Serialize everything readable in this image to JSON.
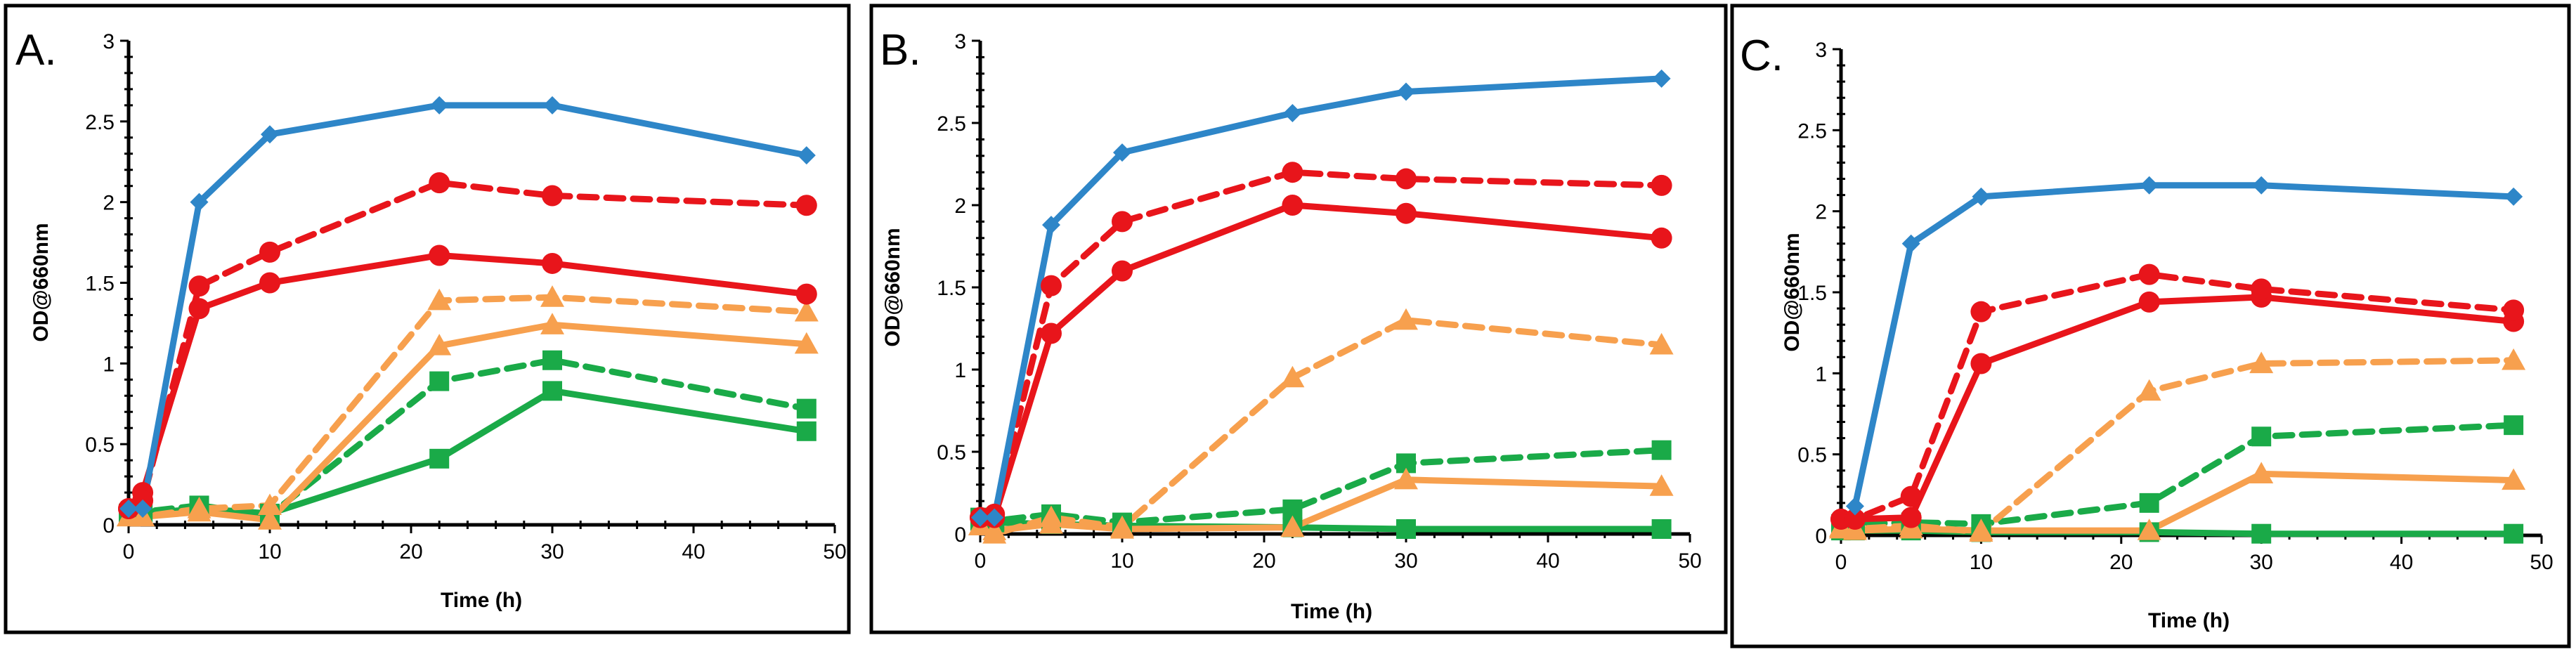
{
  "chart_data": [
    {
      "type": "line",
      "panel_label": "A.",
      "xlabel": "Time (h)",
      "ylabel": "OD@660nm",
      "xlim": [
        0,
        50
      ],
      "ylim": [
        0,
        3
      ],
      "x_ticks": [
        "0",
        "10",
        "20",
        "30",
        "40",
        "50"
      ],
      "y_ticks": [
        "0",
        "0.5",
        "1",
        "1.5",
        "2",
        "2.5",
        "3"
      ],
      "series": [
        {
          "name": "blue",
          "color": "#2e86c8",
          "style": "solid",
          "marker": "diamond",
          "x": [
            0,
            1,
            5,
            10,
            22,
            30,
            48
          ],
          "y": [
            0.1,
            0.1,
            2.0,
            2.42,
            2.6,
            2.6,
            2.29
          ]
        },
        {
          "name": "red-dashed",
          "color": "#e8151b",
          "style": "dashed",
          "marker": "circle",
          "x": [
            0,
            1,
            5,
            10,
            22,
            30,
            48
          ],
          "y": [
            0.1,
            0.15,
            1.48,
            1.69,
            2.12,
            2.04,
            1.98
          ]
        },
        {
          "name": "red-solid",
          "color": "#e8151b",
          "style": "solid",
          "marker": "circle",
          "x": [
            0,
            1,
            5,
            10,
            22,
            30,
            48
          ],
          "y": [
            0.1,
            0.2,
            1.34,
            1.5,
            1.67,
            1.62,
            1.43
          ]
        },
        {
          "name": "orange-dashed",
          "color": "#f7a04e",
          "style": "dashed",
          "marker": "triangle",
          "x": [
            0,
            1,
            5,
            10,
            22,
            30,
            48
          ],
          "y": [
            0.05,
            0.05,
            0.1,
            0.12,
            1.39,
            1.41,
            1.32
          ]
        },
        {
          "name": "orange-solid",
          "color": "#f7a04e",
          "style": "solid",
          "marker": "triangle",
          "x": [
            0,
            1,
            5,
            10,
            22,
            30,
            48
          ],
          "y": [
            0.05,
            0.05,
            0.08,
            0.03,
            1.11,
            1.24,
            1.12
          ]
        },
        {
          "name": "green-dashed",
          "color": "#1aaa48",
          "style": "dashed",
          "marker": "square",
          "x": [
            0,
            1,
            5,
            10,
            22,
            30,
            48
          ],
          "y": [
            0.07,
            0.08,
            0.12,
            0.06,
            0.89,
            1.02,
            0.72
          ]
        },
        {
          "name": "green-solid",
          "color": "#1aaa48",
          "style": "solid",
          "marker": "square",
          "x": [
            0,
            1,
            5,
            10,
            22,
            30,
            48
          ],
          "y": [
            0.07,
            0.07,
            0.1,
            0.07,
            0.41,
            0.83,
            0.58
          ]
        }
      ]
    },
    {
      "type": "line",
      "panel_label": "B.",
      "xlabel": "Time (h)",
      "ylabel": "OD@660nm",
      "xlim": [
        0,
        50
      ],
      "ylim": [
        0,
        3
      ],
      "x_ticks": [
        "0",
        "10",
        "20",
        "30",
        "40",
        "50"
      ],
      "y_ticks": [
        "0",
        "0.5",
        "1",
        "1.5",
        "2",
        "2.5",
        "3"
      ],
      "series": [
        {
          "name": "blue",
          "color": "#2e86c8",
          "style": "solid",
          "marker": "diamond",
          "x": [
            0,
            1,
            5,
            10,
            22,
            30,
            48
          ],
          "y": [
            0.1,
            0.1,
            1.88,
            2.32,
            2.56,
            2.69,
            2.77
          ]
        },
        {
          "name": "red-dashed",
          "color": "#e8151b",
          "style": "dashed",
          "marker": "circle",
          "x": [
            0,
            1,
            5,
            10,
            22,
            30,
            48
          ],
          "y": [
            0.1,
            0.12,
            1.51,
            1.9,
            2.2,
            2.16,
            2.12
          ]
        },
        {
          "name": "red-solid",
          "color": "#e8151b",
          "style": "solid",
          "marker": "circle",
          "x": [
            0,
            1,
            5,
            10,
            22,
            30,
            48
          ],
          "y": [
            0.1,
            0.1,
            1.22,
            1.6,
            2.0,
            1.95,
            1.8
          ]
        },
        {
          "name": "orange-dashed",
          "color": "#f7a04e",
          "style": "dashed",
          "marker": "triangle",
          "x": [
            0,
            1,
            5,
            10,
            22,
            30,
            48
          ],
          "y": [
            0.05,
            0.0,
            0.1,
            0.04,
            0.95,
            1.3,
            1.15
          ]
        },
        {
          "name": "orange-solid",
          "color": "#f7a04e",
          "style": "solid",
          "marker": "triangle",
          "x": [
            0,
            1,
            5,
            10,
            22,
            30,
            48
          ],
          "y": [
            0.05,
            0.02,
            0.06,
            0.03,
            0.04,
            0.33,
            0.29
          ]
        },
        {
          "name": "green-dashed",
          "color": "#1aaa48",
          "style": "dashed",
          "marker": "square",
          "x": [
            0,
            1,
            5,
            10,
            22,
            30,
            48
          ],
          "y": [
            0.1,
            0.08,
            0.12,
            0.07,
            0.15,
            0.43,
            0.51
          ]
        },
        {
          "name": "green-solid",
          "color": "#1aaa48",
          "style": "solid",
          "marker": "square",
          "x": [
            0,
            1,
            5,
            10,
            22,
            30,
            48
          ],
          "y": [
            0.08,
            0.07,
            0.06,
            0.05,
            0.04,
            0.03,
            0.03
          ]
        }
      ]
    },
    {
      "type": "line",
      "panel_label": "C.",
      "xlabel": "Time (h)",
      "ylabel": "OD@660nm",
      "xlim": [
        0,
        50
      ],
      "ylim": [
        0,
        3
      ],
      "x_ticks": [
        "0",
        "10",
        "20",
        "30",
        "40",
        "50"
      ],
      "y_ticks": [
        "0",
        "0.5",
        "1",
        "1.5",
        "2",
        "2.5",
        "3"
      ],
      "series": [
        {
          "name": "blue",
          "color": "#2e86c8",
          "style": "solid",
          "marker": "diamond",
          "x": [
            1,
            5,
            10,
            22,
            30,
            48
          ],
          "y": [
            0.18,
            1.8,
            2.09,
            2.16,
            2.16,
            2.09
          ]
        },
        {
          "name": "red-dashed",
          "color": "#e8151b",
          "style": "dashed",
          "marker": "circle",
          "x": [
            0,
            1,
            5,
            10,
            22,
            30,
            48
          ],
          "y": [
            0.1,
            0.1,
            0.24,
            1.38,
            1.61,
            1.52,
            1.39
          ]
        },
        {
          "name": "red-solid",
          "color": "#e8151b",
          "style": "solid",
          "marker": "circle",
          "x": [
            0,
            1,
            5,
            10,
            22,
            30,
            48
          ],
          "y": [
            0.1,
            0.1,
            0.11,
            1.06,
            1.44,
            1.47,
            1.32
          ]
        },
        {
          "name": "orange-dashed",
          "color": "#f7a04e",
          "style": "dashed",
          "marker": "triangle",
          "x": [
            0,
            1,
            5,
            10,
            22,
            30,
            48
          ],
          "y": [
            0.05,
            0.04,
            0.06,
            0.02,
            0.89,
            1.06,
            1.08
          ]
        },
        {
          "name": "orange-solid",
          "color": "#f7a04e",
          "style": "solid",
          "marker": "triangle",
          "x": [
            0,
            1,
            5,
            10,
            22,
            30,
            48
          ],
          "y": [
            0.04,
            0.03,
            0.04,
            0.03,
            0.03,
            0.38,
            0.34
          ]
        },
        {
          "name": "green-dashed",
          "color": "#1aaa48",
          "style": "dashed",
          "marker": "square",
          "x": [
            0,
            1,
            5,
            10,
            22,
            30,
            48
          ],
          "y": [
            0.07,
            0.07,
            0.08,
            0.07,
            0.2,
            0.61,
            0.68
          ]
        },
        {
          "name": "green-solid",
          "color": "#1aaa48",
          "style": "solid",
          "marker": "square",
          "x": [
            0,
            1,
            5,
            10,
            22,
            30,
            48
          ],
          "y": [
            0.03,
            0.03,
            0.03,
            0.02,
            0.02,
            0.01,
            0.01
          ]
        }
      ]
    }
  ]
}
